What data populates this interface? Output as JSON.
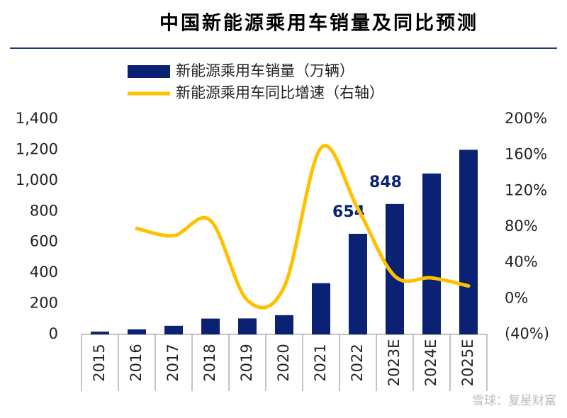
{
  "chart_data": {
    "type": "bar-line",
    "title": "中国新能源乘用车销量及同比预测",
    "categories": [
      "2015",
      "2016",
      "2017",
      "2018",
      "2019",
      "2020",
      "2021",
      "2022",
      "2023E",
      "2024E",
      "2025E"
    ],
    "series": [
      {
        "name": "新能源乘用车销量（万辆）",
        "type": "bar",
        "color": "#0b2274",
        "values": [
          18,
          33,
          56,
          103,
          104,
          125,
          333,
          654,
          848,
          1046,
          1200
        ],
        "value_labels": [
          null,
          null,
          null,
          null,
          null,
          null,
          null,
          "654",
          "848",
          null,
          null
        ]
      },
      {
        "name": "新能源乘用车同比增速（右轴）",
        "type": "line",
        "axis": "y2",
        "color": "#ffc000",
        "values": [
          null,
          78,
          70,
          87,
          -2,
          13,
          168,
          100,
          25,
          23,
          14
        ]
      }
    ],
    "ylim": [
      0,
      1400
    ],
    "yticks": [
      0,
      200,
      400,
      600,
      800,
      {
        "value": 1000,
        "label": "1,000"
      },
      {
        "value": 1200,
        "label": "1,200"
      },
      {
        "value": 1400,
        "label": "1,400"
      }
    ],
    "y2lim": [
      -40,
      200
    ],
    "y2ticks": [
      {
        "value": -40,
        "label": "(40%)"
      },
      {
        "value": 0,
        "label": "0%"
      },
      {
        "value": 40,
        "label": "40%"
      },
      {
        "value": 80,
        "label": "80%"
      },
      {
        "value": 120,
        "label": "120%"
      },
      {
        "value": 160,
        "label": "160%"
      },
      {
        "value": 200,
        "label": "200%"
      }
    ],
    "smooth": true,
    "watermark": "雪球：复星财富"
  }
}
